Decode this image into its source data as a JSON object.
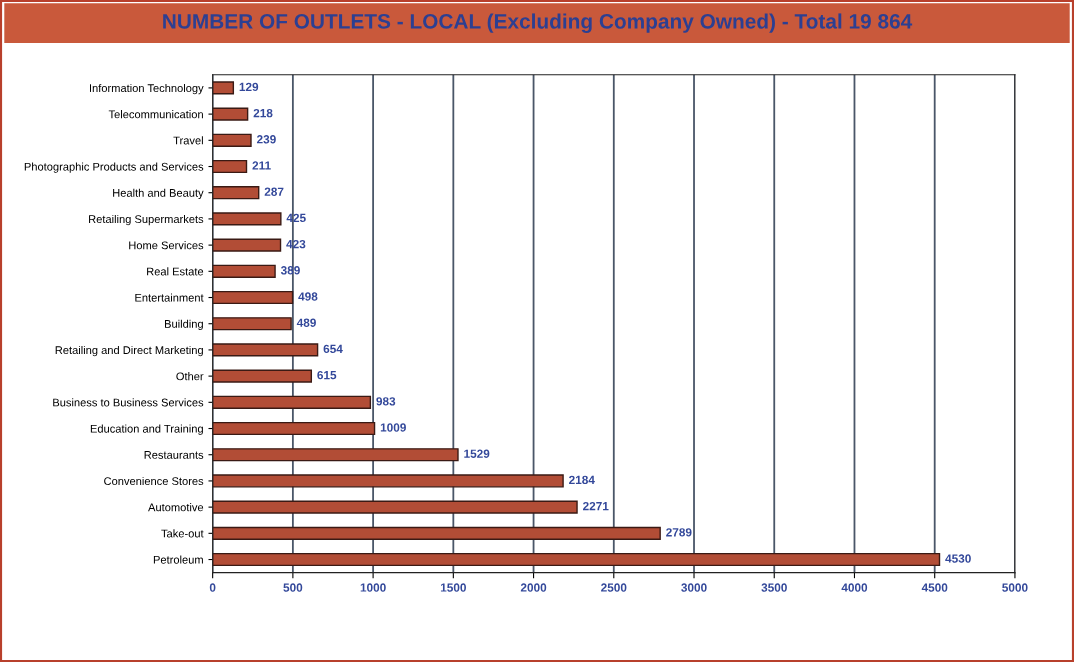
{
  "chart_data": {
    "type": "bar",
    "orientation": "horizontal",
    "title": "NUMBER OF OUTLETS - LOCAL (Excluding Company Owned) - Total 19 864",
    "categories": [
      "Information Technology",
      "Telecommunication",
      "Travel",
      "Photographic Products and Services",
      "Health and Beauty",
      "Retailing Supermarkets",
      "Home Services",
      "Real Estate",
      "Entertainment",
      "Building",
      "Retailing and Direct Marketing",
      "Other",
      "Business to Business Services",
      "Education and Training",
      "Restaurants",
      "Convenience Stores",
      "Automotive",
      "Take-out",
      "Petroleum"
    ],
    "values": [
      129,
      218,
      239,
      211,
      287,
      425,
      423,
      389,
      498,
      489,
      654,
      615,
      983,
      1009,
      1529,
      2184,
      2271,
      2789,
      4530
    ],
    "color": "#b24d36",
    "xlim": [
      0,
      5000
    ],
    "xticks": [
      0,
      500,
      1000,
      1500,
      2000,
      2500,
      3000,
      3500,
      4000,
      4500,
      5000
    ],
    "grid": "x",
    "data_labels": true
  }
}
